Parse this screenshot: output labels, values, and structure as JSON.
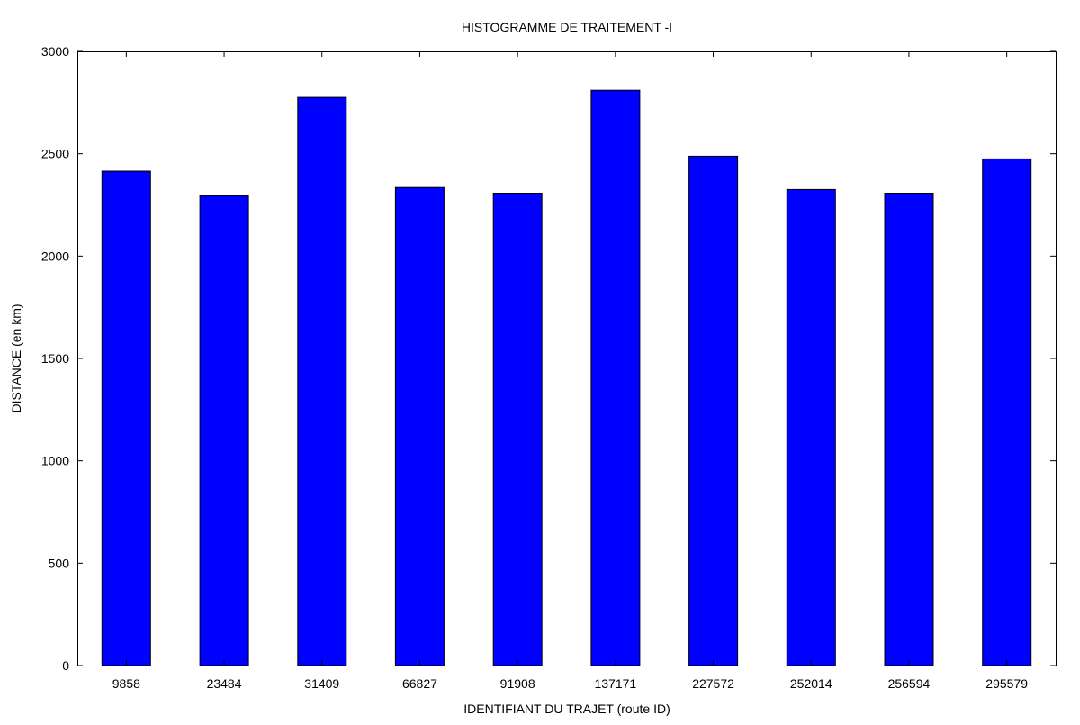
{
  "chart_data": {
    "type": "bar",
    "title": "HISTOGRAMME DE TRAITEMENT -I",
    "xlabel": "IDENTIFIANT DU TRAJET (route ID)",
    "ylabel": "DISTANCE (en km)",
    "categories": [
      "9858",
      "23484",
      "31409",
      "66827",
      "91908",
      "137171",
      "227572",
      "252014",
      "256594",
      "295579"
    ],
    "values": [
      2415,
      2295,
      2775,
      2335,
      2307,
      2810,
      2488,
      2325,
      2307,
      2475
    ],
    "ylim": [
      0,
      3000
    ],
    "yticks": [
      0,
      500,
      1000,
      1500,
      2000,
      2500,
      3000
    ],
    "grid": false,
    "legend": "none",
    "bar_color": "#0000ff",
    "bar_edge_color": "#000000"
  }
}
